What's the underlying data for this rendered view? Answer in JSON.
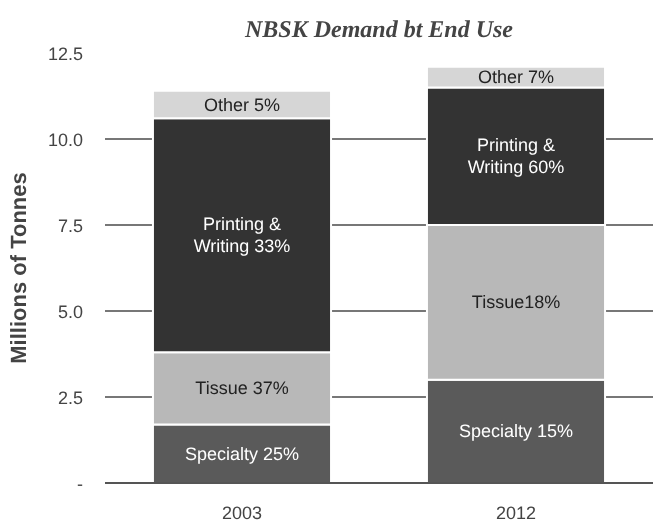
{
  "chart_data": {
    "type": "bar",
    "stacked": true,
    "title": "NBSK Demand bt End Use",
    "ylabel": "Millions of Tonnes",
    "categories": [
      "2003",
      "2012"
    ],
    "series": [
      {
        "color": "#5a5a5a",
        "values": [
          1.7,
          3.0
        ],
        "value_labels": [
          "Specialty 25%",
          "Specialty 15%"
        ]
      },
      {
        "color": "#b8b8b8",
        "values": [
          2.1,
          4.5
        ],
        "value_labels": [
          "Tissue 37%",
          "Tissue18%"
        ]
      },
      {
        "color": "#333333",
        "values": [
          6.8,
          4.0
        ],
        "value_labels": [
          "Printing &\nWriting 33%",
          "Printing &\nWriting 60%"
        ]
      },
      {
        "color": "#d6d6d6",
        "values": [
          0.8,
          0.6
        ],
        "value_labels": [
          "Other 5%",
          "Other 7%"
        ]
      }
    ],
    "ylim": [
      0,
      12.5
    ],
    "yticks": [
      {
        "value": 0,
        "label": "-"
      },
      {
        "value": 2.5,
        "label": "2.5"
      },
      {
        "value": 5,
        "label": "5.0"
      },
      {
        "value": 7.5,
        "label": "7.5"
      },
      {
        "value": 10,
        "label": "10.0"
      },
      {
        "value": 12.5,
        "label": "12.5"
      }
    ],
    "grid": "y"
  }
}
